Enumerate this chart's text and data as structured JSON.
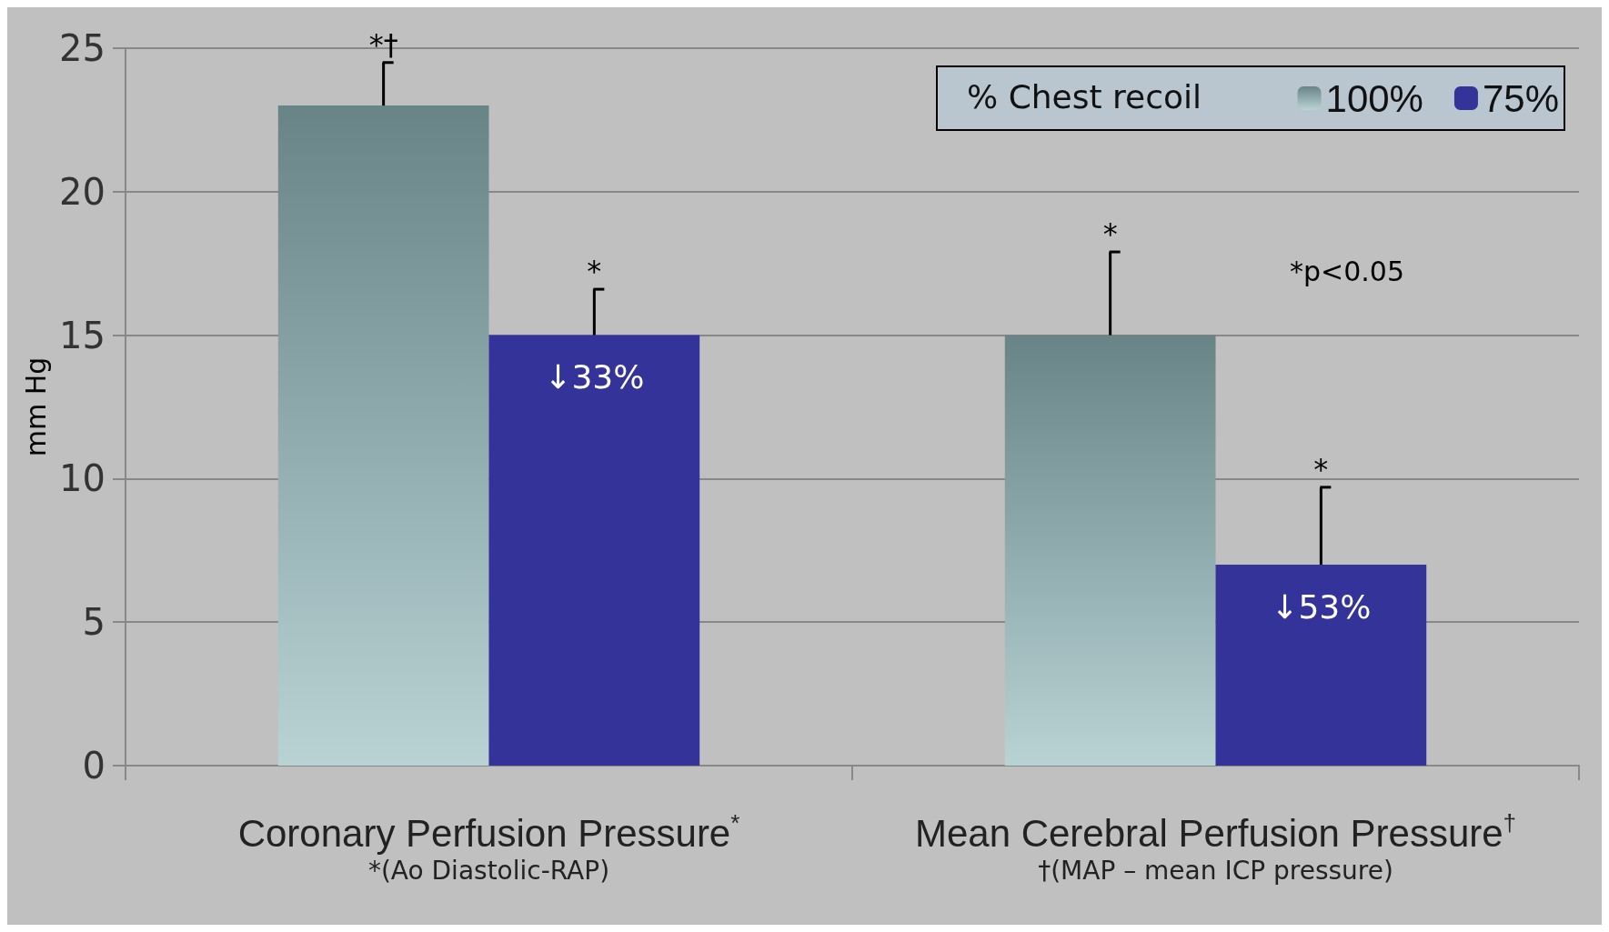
{
  "chart_data": {
    "type": "bar",
    "ylabel": "mm Hg",
    "legend_title": "% Chest recoil",
    "legend": "top right",
    "grid": "y",
    "categories": [
      "Coronary Perfusion Pressure$^{*}$\n*(Ao Diastolic-RAP)",
      "Mean Cerebral Perfusion Pressure$^{†}$\n†(MAP – mean ICP pressure)"
    ],
    "series": [
      {
        "name": "100%",
        "color": "#94bcbf",
        "values": [
          23,
          15
        ],
        "errors": [
          [
            23,
            24.5
          ],
          [
            15,
            17.9
          ]
        ]
      },
      {
        "name": "75%",
        "color": "#333399",
        "values": [
          15,
          7
        ],
        "errors": [
          [
            15,
            16.6
          ],
          [
            7,
            9.7
          ]
        ]
      }
    ],
    "ylim": [
      0,
      25
    ],
    "yticks": [
      0,
      5,
      10,
      15,
      20,
      25
    ],
    "annotations": [
      "*†",
      "*",
      "*",
      "*",
      "↓33%",
      "↓53%",
      "*p<0.05"
    ]
  }
}
